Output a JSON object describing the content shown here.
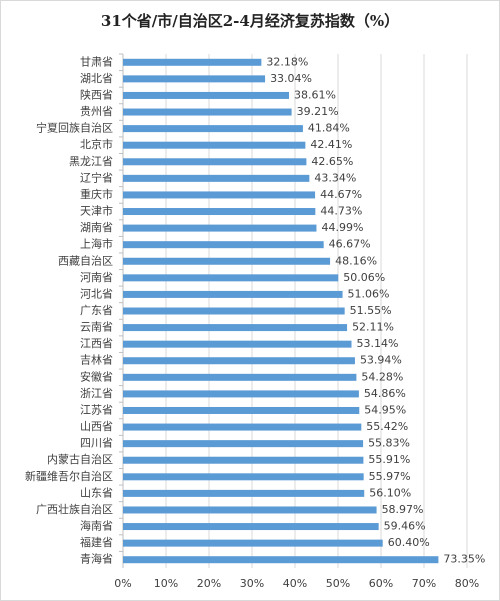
{
  "chart_data": {
    "type": "hbar",
    "title": "31个省/市/自治区2-4月经济复苏指数（%）",
    "categories": [
      "甘肃省",
      "湖北省",
      "陕西省",
      "贵州省",
      "宁夏回族自治区",
      "北京市",
      "黑龙江省",
      "辽宁省",
      "重庆市",
      "天津市",
      "湖南省",
      "上海市",
      "西藏自治区",
      "河南省",
      "河北省",
      "广东省",
      "云南省",
      "江西省",
      "吉林省",
      "安徽省",
      "浙江省",
      "江苏省",
      "山西省",
      "四川省",
      "内蒙古自治区",
      "新疆维吾尔自治区",
      "山东省",
      "广西壮族自治区",
      "海南省",
      "福建省",
      "青海省"
    ],
    "values": [
      32.18,
      33.04,
      38.61,
      39.21,
      41.84,
      42.41,
      42.65,
      43.34,
      44.67,
      44.73,
      44.99,
      46.67,
      48.16,
      50.06,
      51.06,
      51.55,
      52.11,
      53.14,
      53.94,
      54.28,
      54.86,
      54.95,
      55.42,
      55.83,
      55.91,
      55.97,
      56.1,
      58.97,
      59.46,
      60.4,
      73.35
    ],
    "value_labels": [
      "32.18%",
      "33.04%",
      "38.61%",
      "39.21%",
      "41.84%",
      "42.41%",
      "42.65%",
      "43.34%",
      "44.67%",
      "44.73%",
      "44.99%",
      "46.67%",
      "48.16%",
      "50.06%",
      "51.06%",
      "51.55%",
      "52.11%",
      "53.14%",
      "53.94%",
      "54.28%",
      "54.86%",
      "54.95%",
      "55.42%",
      "55.83%",
      "55.91%",
      "55.97%",
      "56.10%",
      "58.97%",
      "59.46%",
      "60.40%",
      "73.35%"
    ],
    "color": "#5b9bd5",
    "xlim": [
      0,
      80
    ],
    "xticks": [
      {
        "value": 0,
        "label": "0%"
      },
      {
        "value": 10,
        "label": "10%"
      },
      {
        "value": 20,
        "label": "20%"
      },
      {
        "value": 30,
        "label": "30%"
      },
      {
        "value": 40,
        "label": "40%"
      },
      {
        "value": 50,
        "label": "50%"
      },
      {
        "value": 60,
        "label": "60%"
      },
      {
        "value": 70,
        "label": "70%"
      },
      {
        "value": 80,
        "label": "80%"
      }
    ],
    "grid": true
  }
}
